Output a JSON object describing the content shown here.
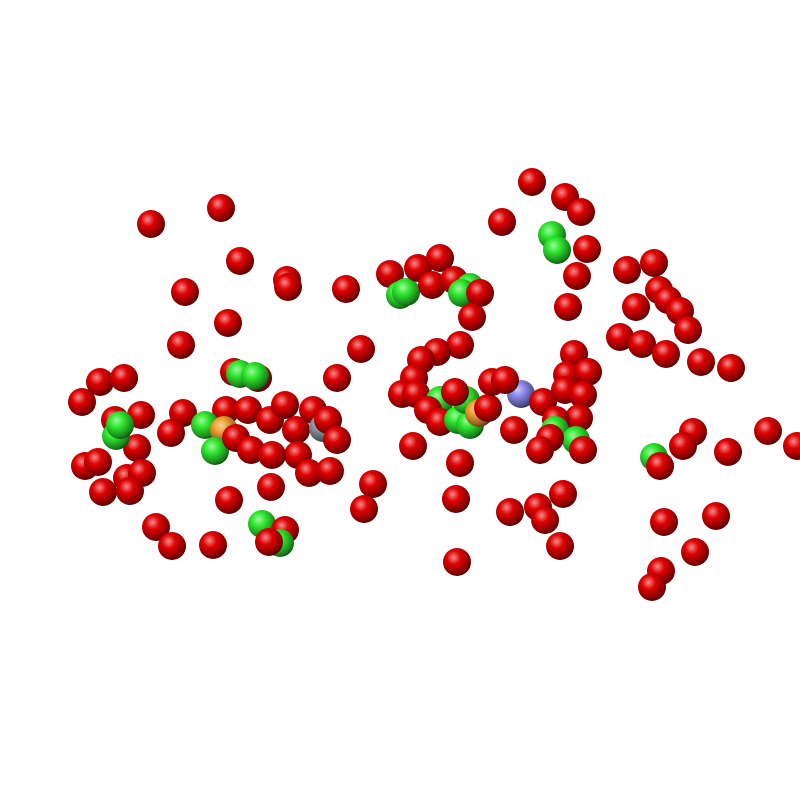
{
  "scene": {
    "background": "#ffffff",
    "colors": {
      "oxygen": "#e00000",
      "green": "#2ee82e",
      "gold": "#f0a030",
      "blue": "#8a8af0",
      "gray": "#8a96a6"
    }
  }
}
